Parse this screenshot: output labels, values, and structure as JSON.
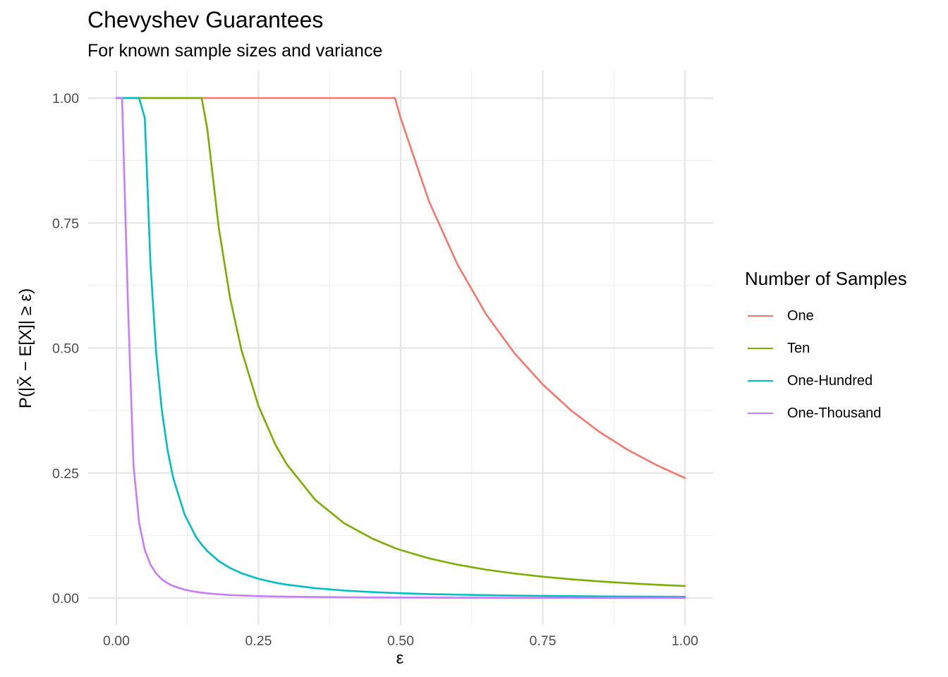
{
  "chart_data": {
    "type": "line",
    "title": "Chevyshev Guarantees",
    "subtitle": "For known sample sizes and variance",
    "xlabel": "ε",
    "ylabel": "P(|X̄ − E[X]| ≥ ε)",
    "xlim": [
      0,
      1
    ],
    "ylim": [
      0,
      1
    ],
    "x_ticks": [
      "0.00",
      "0.25",
      "0.50",
      "0.75",
      "1.00"
    ],
    "y_ticks": [
      "0.00",
      "0.25",
      "0.50",
      "0.75",
      "1.00"
    ],
    "grid": true,
    "legend_title": "Number of Samples",
    "legend_position": "right",
    "variance": 0.24,
    "x": [
      0.0,
      0.01,
      0.02,
      0.03,
      0.04,
      0.05,
      0.06,
      0.07,
      0.08,
      0.09,
      0.1,
      0.12,
      0.14,
      0.15,
      0.16,
      0.18,
      0.2,
      0.22,
      0.25,
      0.28,
      0.3,
      0.35,
      0.4,
      0.45,
      0.49,
      0.5,
      0.55,
      0.6,
      0.65,
      0.7,
      0.75,
      0.8,
      0.85,
      0.9,
      0.95,
      1.0
    ],
    "series": [
      {
        "name": "One",
        "color": "#F8766D",
        "values": [
          1,
          1,
          1,
          1,
          1,
          1,
          1,
          1,
          1,
          1,
          1,
          1,
          1,
          1,
          1,
          1,
          1,
          1,
          1,
          1,
          1,
          1,
          1,
          1,
          1,
          0.96,
          0.793,
          0.667,
          0.568,
          0.49,
          0.427,
          0.375,
          0.332,
          0.296,
          0.266,
          0.24
        ]
      },
      {
        "name": "Ten",
        "color": "#7CAE00",
        "values": [
          1,
          1,
          1,
          1,
          1,
          1,
          1,
          1,
          1,
          1,
          1,
          1,
          1,
          1,
          0.9375,
          0.741,
          0.6,
          0.496,
          0.384,
          0.306,
          0.267,
          0.196,
          0.15,
          0.119,
          0.0999,
          0.096,
          0.0793,
          0.0667,
          0.0568,
          0.049,
          0.0427,
          0.0375,
          0.0332,
          0.0296,
          0.0266,
          0.024
        ]
      },
      {
        "name": "One-Hundred",
        "color": "#00BFC4",
        "values": [
          1,
          1,
          1,
          1,
          1,
          0.96,
          0.667,
          0.49,
          0.375,
          0.296,
          0.24,
          0.167,
          0.122,
          0.107,
          0.0938,
          0.0741,
          0.06,
          0.0496,
          0.0384,
          0.0306,
          0.0267,
          0.0196,
          0.015,
          0.0119,
          0.01,
          0.0096,
          0.0079,
          0.0067,
          0.0057,
          0.0049,
          0.0043,
          0.0038,
          0.0033,
          0.003,
          0.0027,
          0.0024
        ]
      },
      {
        "name": "One-Thousand",
        "color": "#C77CFF",
        "values": [
          1,
          1,
          0.6,
          0.267,
          0.15,
          0.096,
          0.0667,
          0.049,
          0.0375,
          0.0296,
          0.024,
          0.0167,
          0.0122,
          0.0107,
          0.0094,
          0.0074,
          0.006,
          0.005,
          0.0038,
          0.0031,
          0.0027,
          0.002,
          0.0015,
          0.0012,
          0.001,
          0.001,
          0.0008,
          0.0007,
          0.0006,
          0.0005,
          0.0004,
          0.0004,
          0.0003,
          0.0003,
          0.0003,
          0.0002
        ]
      }
    ]
  }
}
